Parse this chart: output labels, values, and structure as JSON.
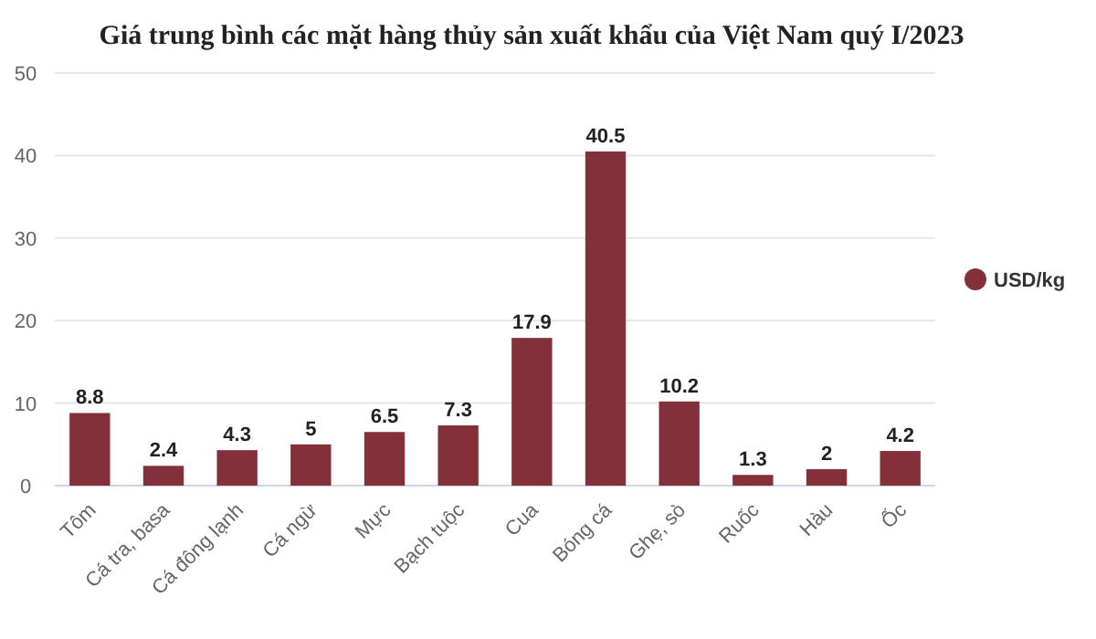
{
  "chart_data": {
    "type": "bar",
    "title": "Giá trung bình các mặt hàng thủy sản xuất khẩu của Việt Nam quý I/2023",
    "categories": [
      "Tôm",
      "Cá tra, basa",
      "Cá đông lạnh",
      "Cá ngừ",
      "Mực",
      "Bạch tuộc",
      "Cua",
      "Bóng cá",
      "Ghẹ, sò",
      "Ruốc",
      "Hàu",
      "Ốc"
    ],
    "series": [
      {
        "name": "USD/kg",
        "color": "#84303a",
        "values": [
          8.8,
          2.4,
          4.3,
          5,
          6.5,
          7.3,
          17.9,
          40.5,
          10.2,
          1.3,
          2,
          4.2
        ]
      }
    ],
    "ylim": [
      0,
      50
    ],
    "yticks": [
      0,
      10,
      20,
      30,
      40,
      50
    ],
    "grid": "y",
    "legend": "right",
    "data_labels": true
  }
}
